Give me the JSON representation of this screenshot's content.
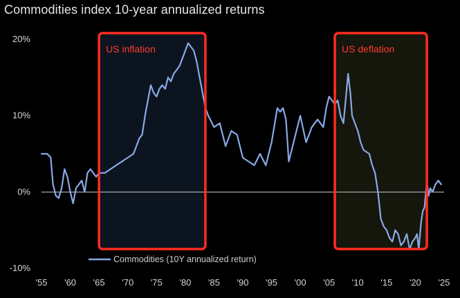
{
  "chart_data": {
    "type": "line",
    "title": "Commodities index 10-year annualized returns",
    "xlabel": "",
    "ylabel": "",
    "xlim": [
      1955,
      2025
    ],
    "ylim": [
      -10,
      20
    ],
    "y_ticks": [
      {
        "value": 20,
        "label": "20%"
      },
      {
        "value": 10,
        "label": "10%"
      },
      {
        "value": 0,
        "label": "0%"
      },
      {
        "value": -10,
        "label": "-10%"
      }
    ],
    "x_ticks": [
      {
        "value": 1955,
        "label": "'55"
      },
      {
        "value": 1960,
        "label": "'60"
      },
      {
        "value": 1965,
        "label": "'65"
      },
      {
        "value": 1970,
        "label": "'70"
      },
      {
        "value": 1975,
        "label": "'75"
      },
      {
        "value": 1980,
        "label": "'80"
      },
      {
        "value": 1985,
        "label": "'85"
      },
      {
        "value": 1990,
        "label": "'90"
      },
      {
        "value": 1995,
        "label": "'95"
      },
      {
        "value": 2000,
        "label": "'00"
      },
      {
        "value": 2005,
        "label": "'05"
      },
      {
        "value": 2010,
        "label": "'10"
      },
      {
        "value": 2015,
        "label": "'15"
      },
      {
        "value": 2020,
        "label": "'20"
      },
      {
        "value": 2025,
        "label": "'25"
      }
    ],
    "grid": false,
    "zero_line": true,
    "legend": {
      "position": "bottom-left"
    },
    "series": [
      {
        "name": "Commodities (10Y annualized return)",
        "color": "#8aa9e6",
        "x": [
          1955.0,
          1956.0,
          1956.6,
          1957.0,
          1957.5,
          1958.0,
          1958.5,
          1959.0,
          1959.5,
          1960.0,
          1960.5,
          1961.0,
          1961.5,
          1962.0,
          1962.5,
          1963.0,
          1963.5,
          1964.0,
          1964.5,
          1965.0,
          1966.0,
          1967.0,
          1968.0,
          1969.0,
          1970.0,
          1971.0,
          1972.0,
          1972.5,
          1973.0,
          1973.5,
          1974.0,
          1974.5,
          1975.0,
          1975.5,
          1976.0,
          1976.5,
          1977.0,
          1977.5,
          1978.0,
          1978.5,
          1979.0,
          1979.5,
          1980.0,
          1980.5,
          1981.0,
          1981.5,
          1982.0,
          1982.5,
          1983.0,
          1983.5,
          1984.0,
          1985.0,
          1986.0,
          1987.0,
          1988.0,
          1989.0,
          1990.0,
          1991.0,
          1992.0,
          1993.0,
          1994.0,
          1995.0,
          1996.0,
          1996.5,
          1997.0,
          1997.5,
          1998.0,
          1999.0,
          2000.0,
          2001.0,
          2002.0,
          2003.0,
          2004.0,
          2004.5,
          2005.0,
          2005.5,
          2006.0,
          2006.5,
          2007.0,
          2007.5,
          2008.0,
          2008.3,
          2008.7,
          2009.0,
          2009.5,
          2010.0,
          2010.5,
          2011.0,
          2012.0,
          2012.5,
          2013.0,
          2013.5,
          2014.0,
          2014.5,
          2015.0,
          2015.5,
          2016.0,
          2016.5,
          2017.0,
          2017.5,
          2018.0,
          2018.5,
          2019.0,
          2019.5,
          2020.0,
          2020.3,
          2020.6,
          2021.0,
          2021.3,
          2021.6,
          2022.0,
          2022.3,
          2022.6,
          2023.0,
          2023.5,
          2024.0,
          2024.5
        ],
        "values": [
          5.0,
          5.0,
          4.5,
          1.0,
          -0.5,
          -0.8,
          0.5,
          3.0,
          2.0,
          0.0,
          -1.5,
          0.5,
          1.0,
          1.5,
          0.0,
          2.5,
          3.0,
          2.5,
          2.0,
          2.5,
          2.5,
          3.0,
          3.5,
          4.0,
          4.5,
          5.0,
          7.0,
          7.5,
          10.0,
          12.0,
          14.0,
          13.0,
          12.5,
          13.5,
          14.0,
          13.5,
          15.0,
          14.5,
          15.5,
          16.0,
          16.5,
          17.5,
          18.5,
          19.5,
          19.0,
          18.5,
          17.0,
          15.0,
          13.0,
          11.0,
          10.0,
          8.5,
          9.0,
          6.0,
          8.0,
          7.5,
          4.5,
          4.0,
          3.5,
          5.0,
          3.5,
          6.5,
          11.0,
          10.5,
          11.0,
          9.5,
          4.0,
          7.0,
          10.0,
          6.5,
          8.5,
          9.5,
          8.5,
          11.0,
          12.5,
          12.0,
          11.5,
          12.0,
          10.0,
          9.0,
          13.0,
          15.5,
          13.0,
          10.0,
          9.0,
          8.0,
          6.5,
          5.5,
          5.0,
          3.5,
          2.5,
          0.0,
          -3.5,
          -4.5,
          -5.0,
          -6.0,
          -6.5,
          -5.0,
          -5.5,
          -7.0,
          -6.5,
          -5.5,
          -7.5,
          -6.5,
          -6.0,
          -5.5,
          -7.5,
          -4.0,
          -2.5,
          -2.0,
          1.5,
          -0.5,
          0.5,
          0.0,
          1.0,
          1.5,
          1.0
        ]
      }
    ],
    "annotations": [
      {
        "label": "US inflation",
        "x_start": 1965.0,
        "x_end": 1983.5,
        "color": "#ff2d20"
      },
      {
        "label": "US deflation",
        "x_start": 2006.0,
        "x_end": 2022.0,
        "color": "#ff2d20"
      }
    ]
  }
}
